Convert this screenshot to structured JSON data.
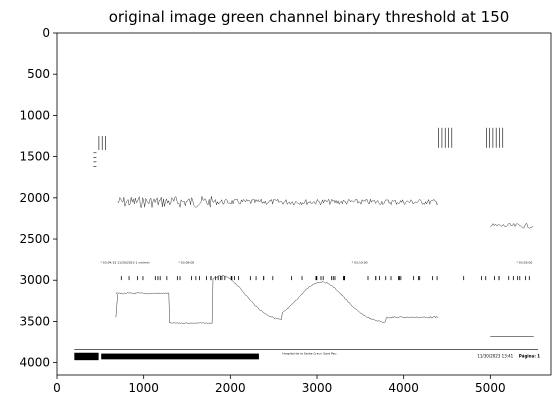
{
  "chart_data": {
    "type": "image",
    "title": "original image green channel binary threshold at 150",
    "xlim": [
      0,
      5700
    ],
    "ylim": [
      4150,
      0
    ],
    "x_ticks": [
      0,
      1000,
      2000,
      3000,
      4000,
      5000
    ],
    "x_tick_labels": [
      "0",
      "1000",
      "2000",
      "3000",
      "4000",
      "5000"
    ],
    "y_ticks": [
      0,
      500,
      1000,
      1500,
      2000,
      2500,
      3000,
      3500,
      4000
    ],
    "y_tick_labels": [
      "0",
      "500",
      "1000",
      "1500",
      "2000",
      "2500",
      "3000",
      "3500",
      "4000"
    ],
    "grid": false,
    "colors": {
      "axes": "#000000",
      "ink": "#000000",
      "background": "#ffffff"
    },
    "timestamps": [
      "* 03:04:33  11/30/2023  1 cm/min",
      "* 03:09:00",
      "* 03:19:00",
      "* 03:29:00"
    ],
    "footer": {
      "center_text": "Hospital de la Santa Creu i Sant Pau",
      "right_text": "11/30/2023 13:41",
      "page_label": "Página: 1"
    }
  }
}
